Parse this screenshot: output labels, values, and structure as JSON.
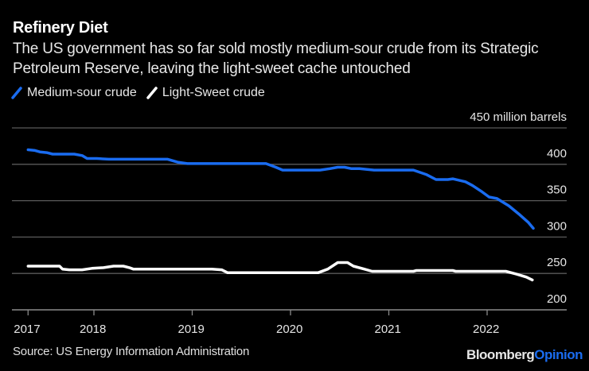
{
  "header": {
    "title": "Refinery Diet",
    "subtitle": "The US government has so far sold mostly medium-sour crude from its Strategic Petroleum Reserve, leaving the light-sweet cache untouched"
  },
  "legend": [
    {
      "label": "Medium-sour crude",
      "color": "#1a6cf0"
    },
    {
      "label": "Light-Sweet crude",
      "color": "#ffffff"
    }
  ],
  "footer": {
    "source": "Source: US Energy Information Administration",
    "logo_primary": "Bloomberg",
    "logo_secondary": "Opinion"
  },
  "chart_data": {
    "type": "line",
    "title": "Refinery Diet",
    "xlabel": "",
    "ylabel": "million barrels",
    "y_unit_label": "450 million barrels",
    "ylim": [
      200,
      450
    ],
    "yticks": [
      200,
      250,
      300,
      350,
      400,
      450
    ],
    "ytick_labels": [
      "200",
      "250",
      "300",
      "350",
      "400",
      "450 million barrels"
    ],
    "xlim": [
      2017.0,
      2022.75
    ],
    "xticks": [
      2017.33,
      2018,
      2019,
      2020,
      2021,
      2022
    ],
    "xtick_labels": [
      "2017",
      "2018",
      "2019",
      "2020",
      "2021",
      "2022"
    ],
    "grid": true,
    "legend_position": "top-left",
    "series": [
      {
        "name": "Medium-sour crude",
        "color": "#1a6cf0",
        "points": [
          [
            2017.33,
            420
          ],
          [
            2017.4,
            419
          ],
          [
            2017.45,
            417
          ],
          [
            2017.52,
            416
          ],
          [
            2017.58,
            414
          ],
          [
            2017.7,
            414
          ],
          [
            2017.8,
            414
          ],
          [
            2017.88,
            412
          ],
          [
            2017.93,
            408
          ],
          [
            2018.03,
            408
          ],
          [
            2018.15,
            407
          ],
          [
            2018.4,
            407
          ],
          [
            2018.75,
            407
          ],
          [
            2018.85,
            403
          ],
          [
            2018.95,
            401
          ],
          [
            2019.1,
            401
          ],
          [
            2019.4,
            401
          ],
          [
            2019.6,
            401
          ],
          [
            2019.75,
            401
          ],
          [
            2019.85,
            396
          ],
          [
            2019.92,
            392
          ],
          [
            2020.1,
            392
          ],
          [
            2020.3,
            392
          ],
          [
            2020.4,
            394
          ],
          [
            2020.48,
            396
          ],
          [
            2020.55,
            396
          ],
          [
            2020.62,
            394
          ],
          [
            2020.7,
            394
          ],
          [
            2020.78,
            393
          ],
          [
            2020.85,
            392
          ],
          [
            2021.0,
            392
          ],
          [
            2021.1,
            392
          ],
          [
            2021.2,
            392
          ],
          [
            2021.25,
            392
          ],
          [
            2021.38,
            386
          ],
          [
            2021.48,
            379
          ],
          [
            2021.6,
            379
          ],
          [
            2021.65,
            380
          ],
          [
            2021.78,
            376
          ],
          [
            2021.85,
            371
          ],
          [
            2021.95,
            362
          ],
          [
            2022.02,
            355
          ],
          [
            2022.1,
            353
          ],
          [
            2022.22,
            343
          ],
          [
            2022.32,
            332
          ],
          [
            2022.42,
            320
          ],
          [
            2022.47,
            312
          ]
        ]
      },
      {
        "name": "Light-Sweet crude",
        "color": "#ffffff",
        "points": [
          [
            2017.33,
            260
          ],
          [
            2017.5,
            260
          ],
          [
            2017.65,
            260
          ],
          [
            2017.68,
            256
          ],
          [
            2017.75,
            255
          ],
          [
            2017.88,
            255
          ],
          [
            2017.98,
            257
          ],
          [
            2018.1,
            258
          ],
          [
            2018.2,
            260
          ],
          [
            2018.3,
            260
          ],
          [
            2018.36,
            258
          ],
          [
            2018.4,
            256
          ],
          [
            2018.6,
            256
          ],
          [
            2018.9,
            256
          ],
          [
            2019.2,
            256
          ],
          [
            2019.3,
            255
          ],
          [
            2019.36,
            251
          ],
          [
            2019.6,
            251
          ],
          [
            2019.9,
            251
          ],
          [
            2020.2,
            251
          ],
          [
            2020.28,
            251
          ],
          [
            2020.38,
            256
          ],
          [
            2020.48,
            265
          ],
          [
            2020.58,
            265
          ],
          [
            2020.64,
            260
          ],
          [
            2020.75,
            256
          ],
          [
            2020.83,
            253
          ],
          [
            2021.0,
            253
          ],
          [
            2021.25,
            253
          ],
          [
            2021.28,
            254
          ],
          [
            2021.5,
            254
          ],
          [
            2021.65,
            254
          ],
          [
            2021.68,
            253
          ],
          [
            2021.9,
            253
          ],
          [
            2022.1,
            253
          ],
          [
            2022.19,
            253
          ],
          [
            2022.3,
            249
          ],
          [
            2022.4,
            245
          ],
          [
            2022.46,
            241
          ]
        ]
      }
    ]
  }
}
